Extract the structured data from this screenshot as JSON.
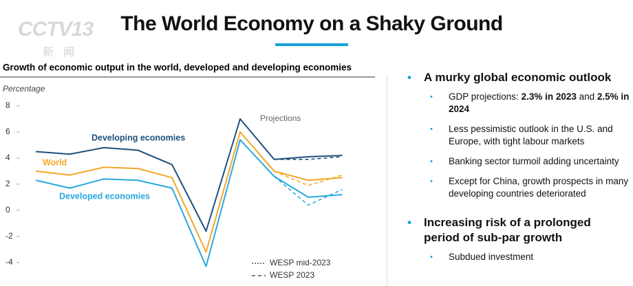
{
  "logo": {
    "text": "CCTV13",
    "sub": "新闻"
  },
  "title": "The World Economy on a Shaky Ground",
  "chart_data": {
    "type": "line",
    "title": "Growth of economic output in the world, developed and developing economies",
    "y_label": "Percentage",
    "annotation": "Projections",
    "categories": [
      null,
      null,
      null,
      null,
      null,
      null,
      null,
      null,
      null,
      null
    ],
    "ylim": [
      -5.8,
      8
    ],
    "yticks": [
      8,
      6,
      4,
      2,
      0,
      -2,
      -4
    ],
    "series": [
      {
        "name": "Developing economies",
        "color": "#1d4f7c",
        "values": [
          4.5,
          4.3,
          4.8,
          4.6,
          3.5,
          -1.6,
          7.0,
          3.9,
          4.1,
          4.2
        ],
        "wesp_2023_values": [
          null,
          null,
          null,
          null,
          null,
          null,
          null,
          3.9,
          3.9,
          4.1
        ]
      },
      {
        "name": "World",
        "color": "#f5a623",
        "values": [
          3.0,
          2.7,
          3.3,
          3.2,
          2.5,
          -3.2,
          6.0,
          3.0,
          2.3,
          2.5
        ],
        "wesp_2023_values": [
          null,
          null,
          null,
          null,
          null,
          null,
          null,
          3.0,
          1.9,
          2.7
        ]
      },
      {
        "name": "Developed economies",
        "color": "#29a8e0",
        "values": [
          2.3,
          1.7,
          2.4,
          2.3,
          1.7,
          -4.3,
          5.4,
          2.6,
          1.0,
          1.2
        ],
        "wesp_2023_values": [
          null,
          null,
          null,
          null,
          null,
          null,
          null,
          2.6,
          0.4,
          1.6
        ]
      }
    ],
    "legend": [
      "WESP mid-2023",
      "WESP 2023"
    ]
  },
  "bullets": [
    {
      "heading": "A murky global economic outlook",
      "items": [
        [
          {
            "text": "GDP projections: ",
            "bold": false
          },
          {
            "text": "2.3% in 2023",
            "bold": true
          },
          {
            "text": " and ",
            "bold": false
          },
          {
            "text": "2.5% in 2024",
            "bold": true
          }
        ],
        [
          {
            "text": "Less pessimistic outlook in the U.S. and Europe, with tight labour markets",
            "bold": false
          }
        ],
        [
          {
            "text": "Banking sector turmoil adding uncertainty",
            "bold": false
          }
        ],
        [
          {
            "text": "Except for China, growth prospects in many developing countries deteriorated",
            "bold": false
          }
        ]
      ]
    },
    {
      "heading": "Increasing risk of a prolonged period of sub-par growth",
      "items": [
        [
          {
            "text": "Subdued investment",
            "bold": false
          }
        ]
      ]
    }
  ]
}
